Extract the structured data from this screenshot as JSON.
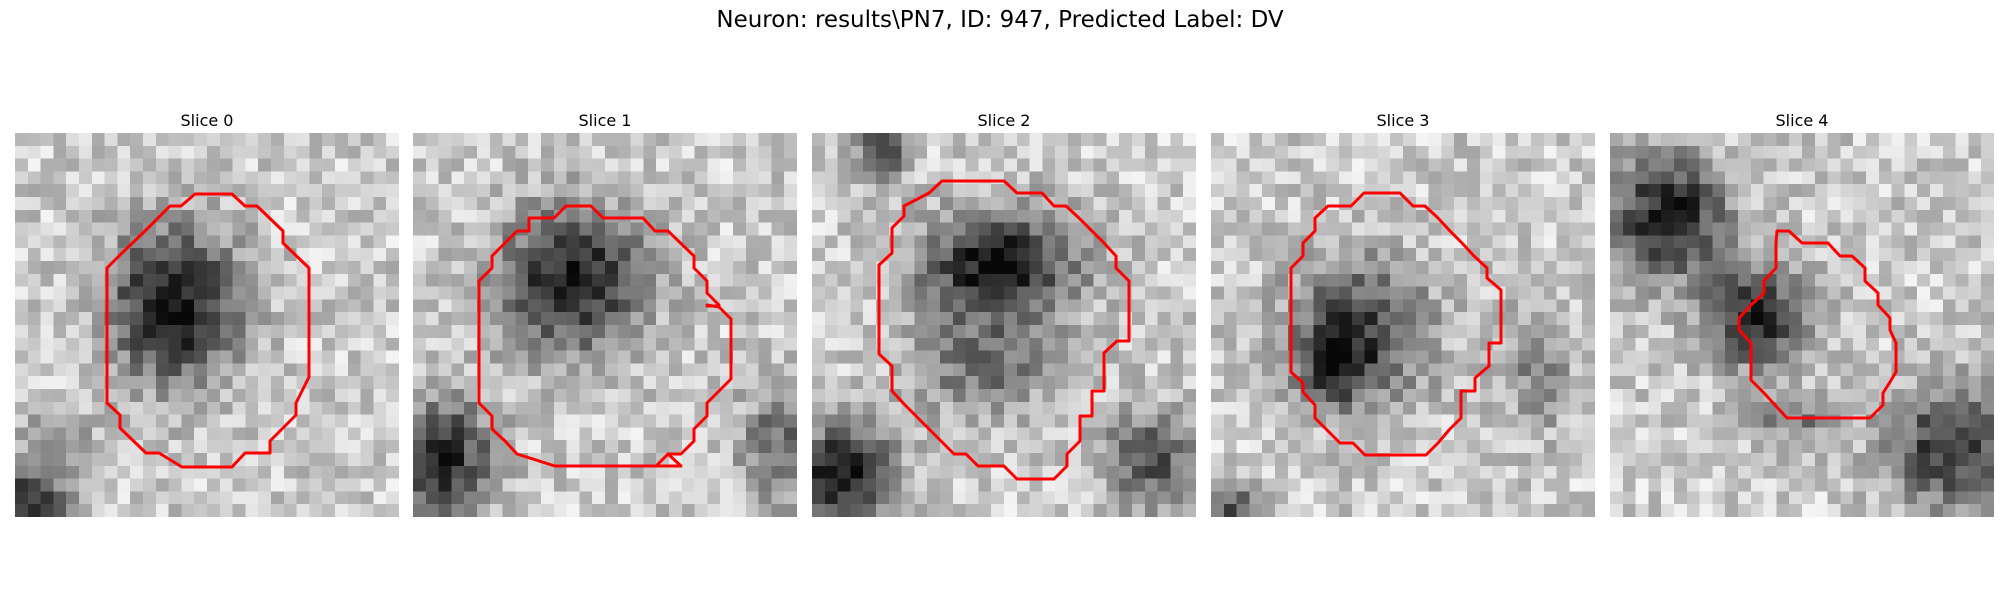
{
  "figure": {
    "title": "Neuron: results\\PN7, ID: 947, Predicted Label: DV"
  },
  "slices": [
    {
      "title": "Slice 0",
      "texture_seed": 11
    },
    {
      "title": "Slice 1",
      "texture_seed": 23
    },
    {
      "title": "Slice 2",
      "texture_seed": 37
    },
    {
      "title": "Slice 3",
      "texture_seed": 41
    },
    {
      "title": "Slice 4",
      "texture_seed": 59
    }
  ],
  "colors": {
    "contour": "#ff0000",
    "background": "#ffffff"
  }
}
